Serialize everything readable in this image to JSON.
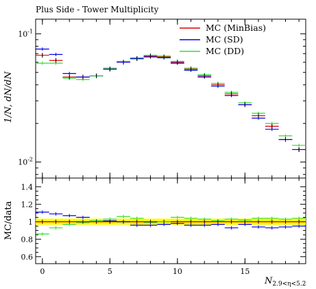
{
  "chart_data": {
    "type": "scatter",
    "title": "Plus Side - Tower Multiplicity",
    "ylabel": "1/N, dN/dN",
    "xlabel": "N",
    "xlabel_sub": "2.9<η<5.2",
    "ratio_ylabel": "MC/data",
    "main_ylim": [
      0.0075,
      0.13
    ],
    "main_yscale": "log",
    "ratio_ylim": [
      0.52,
      1.5
    ],
    "xlim": [
      -0.5,
      19.5
    ],
    "x_ticks": [
      0,
      5,
      10,
      15
    ],
    "main_y_ticks": [
      "10^-1",
      "10^-2"
    ],
    "ratio_y_ticks": [
      "0.6",
      "0.8",
      "1",
      "1.2",
      "1.4"
    ],
    "legend_placement": "top-right",
    "x": [
      0,
      1,
      2,
      3,
      4,
      5,
      6,
      7,
      8,
      9,
      10,
      11,
      12,
      13,
      14,
      15,
      16,
      17,
      18,
      19
    ],
    "series": [
      {
        "name": "MC (MinBias)",
        "color": "#dd0000",
        "values": [
          0.068,
          0.062,
          0.046,
          0.046,
          0.047,
          0.053,
          0.06,
          0.064,
          0.067,
          0.066,
          0.06,
          0.053,
          0.047,
          0.04,
          0.034,
          0.028,
          0.023,
          0.019,
          0.015,
          0.0125
        ],
        "ratio": [
          1.0,
          1.0,
          1.0,
          1.0,
          1.0,
          1.0,
          1.0,
          1.0,
          1.0,
          1.0,
          1.0,
          1.0,
          1.0,
          1.0,
          1.0,
          1.0,
          1.0,
          1.0,
          1.0,
          1.0
        ]
      },
      {
        "name": "MC (SD)",
        "color": "#0000ee",
        "values": [
          0.076,
          0.069,
          0.049,
          0.046,
          0.047,
          0.053,
          0.06,
          0.064,
          0.066,
          0.065,
          0.059,
          0.052,
          0.046,
          0.039,
          0.033,
          0.028,
          0.022,
          0.018,
          0.015,
          0.0125
        ],
        "ratio": [
          1.11,
          1.09,
          1.07,
          1.05,
          1.01,
          1.01,
          1.0,
          0.96,
          0.96,
          0.97,
          0.98,
          0.96,
          0.96,
          0.97,
          0.93,
          0.97,
          0.94,
          0.93,
          0.94,
          0.95
        ]
      },
      {
        "name": "MC (DD)",
        "color": "#33dd33",
        "values": [
          0.059,
          0.059,
          0.045,
          0.044,
          0.047,
          0.054,
          0.061,
          0.065,
          0.068,
          0.067,
          0.061,
          0.054,
          0.048,
          0.041,
          0.035,
          0.029,
          0.024,
          0.02,
          0.016,
          0.0135
        ],
        "ratio": [
          0.86,
          0.93,
          0.97,
          0.99,
          1.01,
          1.03,
          1.06,
          1.04,
          0.99,
          1.0,
          1.05,
          1.04,
          1.03,
          1.01,
          1.03,
          1.02,
          1.04,
          1.04,
          1.03,
          1.04
        ]
      }
    ]
  }
}
